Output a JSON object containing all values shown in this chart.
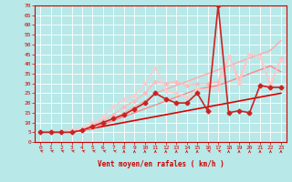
{
  "xlabel": "Vent moyen/en rafales ( km/h )",
  "background_color": "#b8e8e8",
  "grid_color": "#ffffff",
  "text_color": "#cc0000",
  "xlim": [
    -0.5,
    23.5
  ],
  "ylim": [
    0,
    70
  ],
  "yticks": [
    0,
    5,
    10,
    15,
    20,
    25,
    30,
    35,
    40,
    45,
    50,
    55,
    60,
    65,
    70
  ],
  "xticks": [
    0,
    1,
    2,
    3,
    4,
    5,
    6,
    7,
    8,
    9,
    10,
    11,
    12,
    13,
    14,
    15,
    16,
    17,
    18,
    19,
    20,
    21,
    22,
    23
  ],
  "lines": [
    {
      "x": [
        0,
        1,
        2,
        3,
        4,
        5,
        6,
        7,
        8,
        9,
        10,
        11,
        12,
        13,
        14,
        15,
        16,
        17,
        18,
        19,
        20,
        21,
        22,
        23
      ],
      "y": [
        5,
        5,
        5,
        5,
        6,
        7,
        8,
        9,
        10,
        11,
        12,
        13,
        14,
        15,
        16,
        17,
        18,
        19,
        20,
        21,
        22,
        23,
        24,
        25
      ],
      "color": "#dd0000",
      "lw": 1.2,
      "marker": null
    },
    {
      "x": [
        0,
        1,
        2,
        3,
        4,
        5,
        6,
        7,
        8,
        9,
        10,
        11,
        12,
        13,
        14,
        15,
        16,
        17,
        18,
        19,
        20,
        21,
        22,
        23
      ],
      "y": [
        5,
        5,
        5,
        5,
        6,
        7,
        9,
        11,
        13,
        15,
        17,
        19,
        21,
        23,
        25,
        27,
        28,
        29,
        31,
        33,
        35,
        37,
        39,
        36
      ],
      "color": "#ff8888",
      "lw": 1.0,
      "marker": null
    },
    {
      "x": [
        0,
        1,
        2,
        3,
        4,
        5,
        6,
        7,
        8,
        9,
        10,
        11,
        12,
        13,
        14,
        15,
        16,
        17,
        18,
        19,
        20,
        21,
        22,
        23
      ],
      "y": [
        5,
        5,
        5,
        5,
        6,
        8,
        10,
        12,
        15,
        18,
        21,
        25,
        27,
        29,
        31,
        33,
        35,
        37,
        39,
        41,
        43,
        45,
        47,
        52
      ],
      "color": "#ffaaaa",
      "lw": 1.0,
      "marker": null
    },
    {
      "x": [
        0,
        1,
        2,
        3,
        4,
        5,
        6,
        7,
        8,
        9,
        10,
        11,
        12,
        13,
        14,
        15,
        16,
        17,
        18,
        19,
        20,
        21,
        22,
        23
      ],
      "y": [
        5,
        5,
        5,
        6,
        7,
        9,
        11,
        14,
        18,
        21,
        25,
        31,
        30,
        31,
        29,
        30,
        30,
        31,
        44,
        32,
        45,
        44,
        29,
        43
      ],
      "color": "#ffbbbb",
      "lw": 1.0,
      "marker": "D",
      "ms": 2.0
    },
    {
      "x": [
        0,
        1,
        2,
        3,
        4,
        5,
        6,
        7,
        8,
        9,
        10,
        11,
        12,
        13,
        14,
        15,
        16,
        17,
        18,
        19,
        20,
        21,
        22,
        23
      ],
      "y": [
        5,
        5,
        5,
        6,
        7,
        10,
        13,
        18,
        22,
        24,
        30,
        38,
        26,
        25,
        23,
        27,
        27,
        27,
        44,
        30,
        45,
        44,
        30,
        42
      ],
      "color": "#ffcccc",
      "lw": 1.0,
      "marker": "D",
      "ms": 2.0
    },
    {
      "x": [
        0,
        1,
        2,
        3,
        4,
        5,
        6,
        7,
        8,
        9,
        10,
        11,
        12,
        13,
        14,
        15,
        16,
        17,
        18,
        19,
        20,
        21,
        22,
        23
      ],
      "y": [
        5,
        5,
        5,
        5,
        6,
        8,
        10,
        12,
        14,
        17,
        20,
        25,
        22,
        20,
        20,
        25,
        16,
        70,
        15,
        16,
        15,
        29,
        28,
        28
      ],
      "color": "#cc2222",
      "lw": 1.2,
      "marker": "D",
      "ms": 2.5
    }
  ],
  "wind_arrows": {
    "x": [
      0,
      1,
      2,
      3,
      4,
      5,
      6,
      7,
      8,
      9,
      10,
      11,
      12,
      13,
      14,
      15,
      16,
      17,
      18,
      19,
      20,
      21,
      22,
      23
    ],
    "angles": [
      315,
      315,
      315,
      315,
      315,
      315,
      315,
      315,
      0,
      0,
      0,
      0,
      0,
      0,
      0,
      0,
      315,
      315,
      0,
      0,
      0,
      0,
      0,
      0
    ]
  }
}
